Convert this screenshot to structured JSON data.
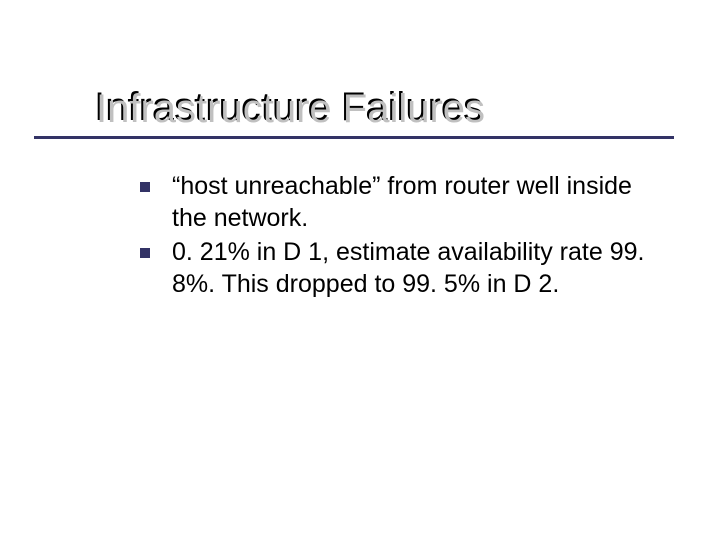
{
  "slide": {
    "title": "Infrastructure Failures",
    "title_color": "#000000",
    "title_shadow_color": "#c0c0c0",
    "title_fontsize": 40,
    "underline_color": "#333366",
    "background_color": "#ffffff",
    "body_fontsize": 25,
    "body_color": "#000000",
    "bullet_marker_color": "#333366",
    "bullets": [
      "“host unreachable” from router well inside the network.",
      "0. 21% in D 1, estimate availability rate 99. 8%. This dropped to 99. 5% in D 2."
    ]
  }
}
